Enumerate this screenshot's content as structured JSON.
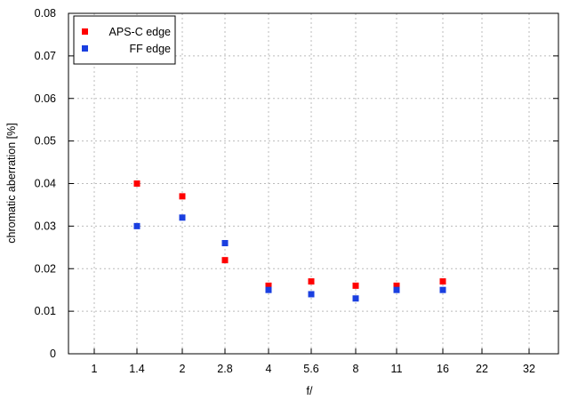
{
  "chart_data": {
    "type": "scatter",
    "xlabel": "f/",
    "ylabel": "chromatic aberration [%]",
    "categories": [
      "1",
      "1.4",
      "2",
      "2.8",
      "4",
      "5.6",
      "8",
      "11",
      "16",
      "22",
      "32"
    ],
    "y_ticks": [
      "0",
      "0.01",
      "0.02",
      "0.03",
      "0.04",
      "0.05",
      "0.06",
      "0.07",
      "0.08"
    ],
    "ylim": [
      0,
      0.08
    ],
    "grid": true,
    "legend_position": "top-left",
    "series": [
      {
        "name": "APS-C edge",
        "color": "#ff0000",
        "values": [
          null,
          0.04,
          0.037,
          0.022,
          0.016,
          0.017,
          0.016,
          0.016,
          0.017,
          null,
          null
        ]
      },
      {
        "name": "FF edge",
        "color": "#1a3fe0",
        "values": [
          null,
          0.03,
          0.032,
          0.026,
          0.015,
          0.014,
          0.013,
          0.015,
          0.015,
          null,
          null
        ]
      }
    ]
  }
}
